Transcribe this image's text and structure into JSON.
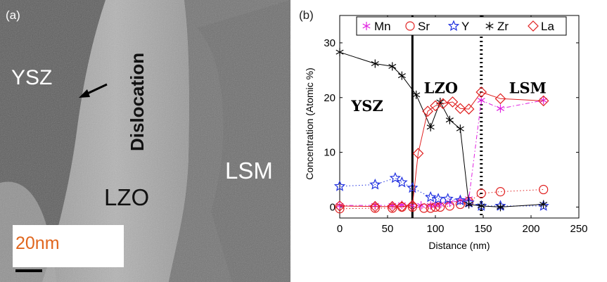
{
  "panel_a": {
    "label": "(a)",
    "labels": {
      "ysz": "YSZ",
      "dislocation": "Dislocation",
      "lzo": "LZO",
      "lsm": "LSM"
    },
    "scale_bar": "20nm",
    "scale_color": "#e0661e"
  },
  "panel_b": {
    "label": "(b)"
  },
  "chart_data": {
    "type": "line",
    "title": "",
    "xlabel": "Distance (nm)",
    "ylabel": "Concentration (Atomic %)",
    "xlim": [
      0,
      250
    ],
    "ylim": [
      -2,
      35
    ],
    "xticks": [
      0,
      50,
      100,
      150,
      200,
      250
    ],
    "yticks": [
      0,
      10,
      20,
      30
    ],
    "grid": false,
    "legend": "top",
    "region_labels": [
      "YSZ",
      "LZO",
      "LSM"
    ],
    "boundaries": [
      {
        "x": 76,
        "style": "solid"
      },
      {
        "x": 148,
        "style": "dotted"
      }
    ],
    "series": [
      {
        "name": "Mn",
        "marker": "asterisk",
        "color": "#e020e0",
        "linestyle": "dashdot",
        "x": [
          0,
          37,
          55,
          65,
          76,
          85,
          95,
          100,
          105,
          115,
          126,
          135,
          148,
          168,
          213
        ],
        "y": [
          0.3,
          0.3,
          0.3,
          0.4,
          0.3,
          0.3,
          0.3,
          0.4,
          0.5,
          0.8,
          1.2,
          1.5,
          19.5,
          18,
          19.5
        ]
      },
      {
        "name": "Sr",
        "marker": "circle",
        "color": "#e02020",
        "linestyle": "dotted",
        "x": [
          0,
          37,
          55,
          65,
          76,
          88,
          95,
          100,
          105,
          115,
          126,
          135,
          148,
          168,
          213
        ],
        "y": [
          -0.3,
          -0.2,
          -0.2,
          0,
          0,
          -0.2,
          -0.2,
          0,
          0,
          0.2,
          0.5,
          1,
          2.5,
          2.8,
          3.2
        ]
      },
      {
        "name": "Y",
        "marker": "star",
        "color": "#2030e0",
        "linestyle": "dotted",
        "x": [
          0,
          37,
          58,
          65,
          76,
          95,
          103,
          113,
          126,
          135,
          148,
          168,
          213
        ],
        "y": [
          3.8,
          4.1,
          5.3,
          4.5,
          3.5,
          1.8,
          1.5,
          1.5,
          1.2,
          0.8,
          0.2,
          0.2,
          0.2
        ]
      },
      {
        "name": "Zr",
        "marker": "asterisk",
        "color": "#000000",
        "linestyle": "solid",
        "x": [
          0,
          37,
          55,
          65,
          80,
          95,
          105,
          115,
          126,
          135,
          148,
          168,
          213
        ],
        "y": [
          28.3,
          26.2,
          25.7,
          24,
          20.5,
          14.6,
          19.2,
          15.9,
          14.3,
          0.5,
          0.2,
          0,
          0.5
        ]
      },
      {
        "name": "La",
        "marker": "diamond",
        "color": "#e02020",
        "linestyle": "solid",
        "x": [
          0,
          37,
          55,
          65,
          76,
          82,
          92,
          100,
          108,
          118,
          126,
          135,
          148,
          168,
          213
        ],
        "y": [
          0.2,
          0.1,
          0.1,
          0.1,
          0.3,
          9.8,
          17.5,
          18.5,
          18.9,
          19.2,
          18,
          17.9,
          21,
          19.8,
          19.4
        ]
      }
    ]
  }
}
